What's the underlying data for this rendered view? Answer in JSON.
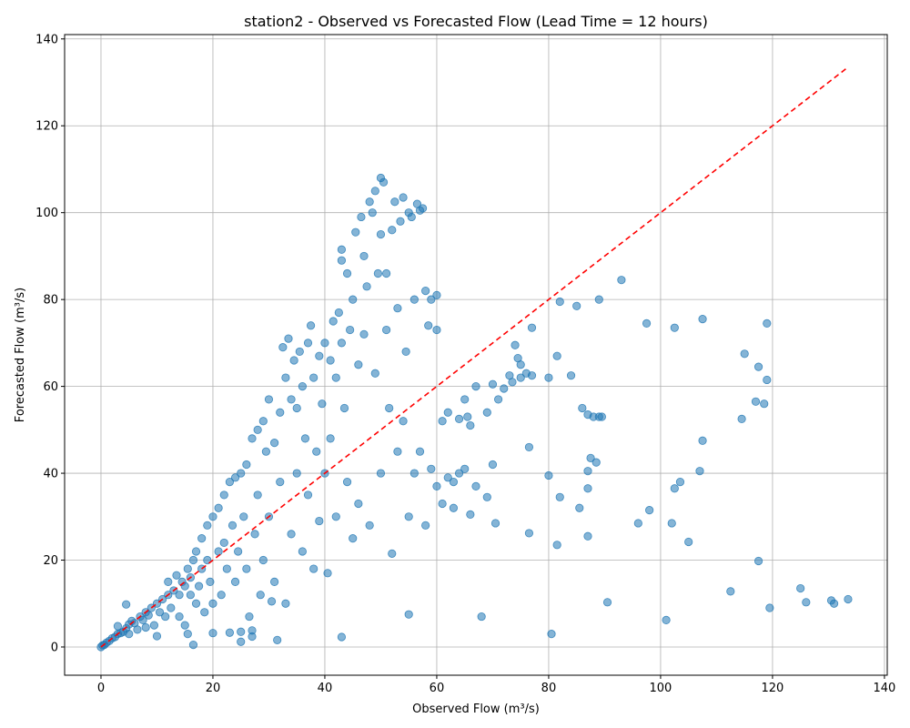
{
  "chart_data": {
    "type": "scatter",
    "title": "station2 - Observed vs Forecasted Flow (Lead Time = 12 hours)",
    "xlabel": "Observed Flow (m³/s)",
    "ylabel": "Forecasted Flow (m³/s)",
    "xlim": [
      -6.5,
      140.5
    ],
    "ylim": [
      -6.5,
      141
    ],
    "x_ticks": [
      0,
      20,
      40,
      60,
      80,
      100,
      120,
      140
    ],
    "y_ticks": [
      0,
      20,
      40,
      60,
      80,
      100,
      120,
      140
    ],
    "x_tick_labels": [
      "0",
      "20",
      "40",
      "60",
      "80",
      "100",
      "120",
      "140"
    ],
    "y_tick_labels": [
      "0",
      "20",
      "40",
      "60",
      "80",
      "100",
      "120",
      "140"
    ],
    "grid": true,
    "point_color": "#1f77b4",
    "point_alpha": 0.55,
    "reference_line": {
      "x": [
        0,
        133.5
      ],
      "y": [
        0,
        133.5
      ],
      "color": "#ff0000",
      "style": "dashed"
    },
    "series": [
      {
        "points": [
          [
            0,
            0
          ],
          [
            0.3,
            0.4
          ],
          [
            0.6,
            0.5
          ],
          [
            1,
            1
          ],
          [
            1.5,
            1.4
          ],
          [
            2,
            2
          ],
          [
            2.5,
            2.3
          ],
          [
            3,
            3
          ],
          [
            3,
            4.8
          ],
          [
            3.5,
            3.2
          ],
          [
            4,
            3.5
          ],
          [
            4.5,
            4.3
          ],
          [
            4.5,
            9.8
          ],
          [
            5,
            5.2
          ],
          [
            5,
            3
          ],
          [
            5.5,
            6
          ],
          [
            6,
            5.5
          ],
          [
            6.5,
            4
          ],
          [
            7,
            7
          ],
          [
            7.5,
            6.2
          ],
          [
            8,
            8
          ],
          [
            8,
            4.5
          ],
          [
            8.5,
            7.3
          ],
          [
            9,
            9
          ],
          [
            9.5,
            5
          ],
          [
            10,
            10
          ],
          [
            10,
            2.5
          ],
          [
            10.5,
            8
          ],
          [
            11,
            11
          ],
          [
            11.5,
            7
          ],
          [
            12,
            12
          ],
          [
            12,
            15
          ],
          [
            12.5,
            9
          ],
          [
            13,
            13
          ],
          [
            13.5,
            16.5
          ],
          [
            14,
            12
          ],
          [
            14,
            7
          ],
          [
            14.5,
            15
          ],
          [
            15,
            14
          ],
          [
            15,
            5
          ],
          [
            15.5,
            18
          ],
          [
            15.5,
            3
          ],
          [
            16,
            16
          ],
          [
            16,
            12
          ],
          [
            16.5,
            20
          ],
          [
            16.5,
            0.5
          ],
          [
            17,
            22
          ],
          [
            17,
            10
          ],
          [
            17.5,
            14
          ],
          [
            18,
            18
          ],
          [
            18,
            25
          ],
          [
            18.5,
            8
          ],
          [
            19,
            20
          ],
          [
            19,
            28
          ],
          [
            19.5,
            15
          ],
          [
            20,
            30
          ],
          [
            20,
            10
          ],
          [
            20,
            3.2
          ],
          [
            21,
            22
          ],
          [
            21,
            32
          ],
          [
            21.5,
            12
          ],
          [
            22,
            35
          ],
          [
            22,
            24
          ],
          [
            22.5,
            18
          ],
          [
            23,
            3.3
          ],
          [
            23,
            38
          ],
          [
            23.5,
            28
          ],
          [
            24,
            15
          ],
          [
            24,
            39
          ],
          [
            24.5,
            22
          ],
          [
            25,
            40
          ],
          [
            25,
            3.5
          ],
          [
            25,
            1.2
          ],
          [
            25.5,
            30
          ],
          [
            26,
            18
          ],
          [
            26,
            42
          ],
          [
            26.5,
            7
          ],
          [
            27,
            48
          ],
          [
            27,
            2.4
          ],
          [
            27.5,
            26
          ],
          [
            27,
            3.8
          ],
          [
            28,
            50
          ],
          [
            28,
            35
          ],
          [
            28.5,
            12
          ],
          [
            29,
            52
          ],
          [
            29,
            20
          ],
          [
            29.5,
            45
          ],
          [
            30,
            57
          ],
          [
            30,
            30
          ],
          [
            30.5,
            10.5
          ],
          [
            31,
            47
          ],
          [
            31,
            15
          ],
          [
            31.5,
            1.6
          ],
          [
            32,
            54
          ],
          [
            32,
            38
          ],
          [
            32.5,
            69
          ],
          [
            33,
            62
          ],
          [
            33,
            10
          ],
          [
            33.5,
            71
          ],
          [
            34,
            57
          ],
          [
            34,
            26
          ],
          [
            34.5,
            66
          ],
          [
            35,
            55
          ],
          [
            35,
            40
          ],
          [
            35.5,
            68
          ],
          [
            36,
            60
          ],
          [
            36,
            22
          ],
          [
            36.5,
            48
          ],
          [
            37,
            70
          ],
          [
            37,
            35
          ],
          [
            37.5,
            74
          ],
          [
            38,
            62
          ],
          [
            38,
            18
          ],
          [
            38.5,
            45
          ],
          [
            39,
            67
          ],
          [
            39,
            29
          ],
          [
            39.5,
            56
          ],
          [
            40,
            70
          ],
          [
            40,
            40
          ],
          [
            40.5,
            17
          ],
          [
            41,
            66
          ],
          [
            41,
            48
          ],
          [
            41.5,
            75
          ],
          [
            42,
            62
          ],
          [
            42,
            30
          ],
          [
            42.5,
            77
          ],
          [
            43,
            91.5
          ],
          [
            43,
            89
          ],
          [
            43,
            2.3
          ],
          [
            43,
            70
          ],
          [
            43.5,
            55
          ],
          [
            44,
            86
          ],
          [
            44,
            38
          ],
          [
            44.5,
            73
          ],
          [
            45,
            80
          ],
          [
            45,
            25
          ],
          [
            45.5,
            95.5
          ],
          [
            46,
            65
          ],
          [
            46,
            33
          ],
          [
            46.5,
            99
          ],
          [
            47,
            90
          ],
          [
            47,
            72
          ],
          [
            47.5,
            83
          ],
          [
            48,
            102.5
          ],
          [
            48,
            28
          ],
          [
            48.5,
            100
          ],
          [
            49,
            105
          ],
          [
            49,
            63
          ],
          [
            49.5,
            86
          ],
          [
            50,
            108
          ],
          [
            50,
            95
          ],
          [
            50,
            40
          ],
          [
            50.5,
            107
          ],
          [
            51,
            73
          ],
          [
            51,
            86
          ],
          [
            51.5,
            55
          ],
          [
            52,
            96
          ],
          [
            52,
            21.5
          ],
          [
            52.5,
            102.5
          ],
          [
            53,
            78
          ],
          [
            53,
            45
          ],
          [
            53.5,
            98
          ],
          [
            54,
            103.5
          ],
          [
            54,
            52
          ],
          [
            54.5,
            68
          ],
          [
            55,
            100
          ],
          [
            55,
            7.5
          ],
          [
            55,
            30
          ],
          [
            55.5,
            99
          ],
          [
            56,
            80
          ],
          [
            56,
            40
          ],
          [
            56.5,
            102
          ],
          [
            57,
            100.5
          ],
          [
            57,
            45
          ],
          [
            57.5,
            101
          ],
          [
            58,
            82
          ],
          [
            58,
            28
          ],
          [
            58.5,
            74
          ],
          [
            59,
            80
          ],
          [
            59,
            41
          ],
          [
            60,
            81
          ],
          [
            60,
            73
          ],
          [
            60,
            37
          ],
          [
            61,
            52
          ],
          [
            61,
            33
          ],
          [
            62,
            54
          ],
          [
            62,
            39
          ],
          [
            63,
            38
          ],
          [
            63,
            32
          ],
          [
            64,
            52.5
          ],
          [
            64,
            40
          ],
          [
            65,
            57
          ],
          [
            65,
            41
          ],
          [
            65.5,
            53
          ],
          [
            66,
            51
          ],
          [
            66,
            30.5
          ],
          [
            67,
            60
          ],
          [
            67,
            37
          ],
          [
            68,
            7
          ],
          [
            69,
            54
          ],
          [
            69,
            34.5
          ],
          [
            70,
            60.5
          ],
          [
            70,
            42
          ],
          [
            70.5,
            28.5
          ],
          [
            71,
            57
          ],
          [
            72,
            59.5
          ],
          [
            73,
            62.5
          ],
          [
            73.5,
            61
          ],
          [
            74,
            69.5
          ],
          [
            74.5,
            66.5
          ],
          [
            75,
            65
          ],
          [
            75,
            62
          ],
          [
            76,
            63
          ],
          [
            76.5,
            26.2
          ],
          [
            76.5,
            46
          ],
          [
            77,
            62.5
          ],
          [
            77,
            73.5
          ],
          [
            80,
            62
          ],
          [
            80,
            39.5
          ],
          [
            80.5,
            3
          ],
          [
            81.5,
            67
          ],
          [
            81.5,
            23.5
          ],
          [
            82,
            34.5
          ],
          [
            82,
            79.5
          ],
          [
            84,
            62.5
          ],
          [
            85,
            78.5
          ],
          [
            85.5,
            32
          ],
          [
            86,
            55
          ],
          [
            87,
            53.5
          ],
          [
            87,
            40.5
          ],
          [
            87,
            36.5
          ],
          [
            87,
            25.5
          ],
          [
            87.5,
            43.5
          ],
          [
            88,
            53
          ],
          [
            88.5,
            42.5
          ],
          [
            89,
            80
          ],
          [
            89,
            53
          ],
          [
            89.5,
            53
          ],
          [
            90.5,
            10.3
          ],
          [
            93,
            84.5
          ],
          [
            96,
            28.5
          ],
          [
            97.5,
            74.5
          ],
          [
            98,
            31.5
          ],
          [
            101,
            6.2
          ],
          [
            102,
            28.5
          ],
          [
            102.5,
            73.5
          ],
          [
            102.5,
            36.5
          ],
          [
            103.5,
            38
          ],
          [
            105,
            24.2
          ],
          [
            107,
            40.5
          ],
          [
            107.5,
            47.5
          ],
          [
            107.5,
            75.5
          ],
          [
            112.5,
            12.8
          ],
          [
            114.5,
            52.5
          ],
          [
            115,
            67.5
          ],
          [
            117,
            56.5
          ],
          [
            117.5,
            64.5
          ],
          [
            117.5,
            19.8
          ],
          [
            118.5,
            56
          ],
          [
            119,
            61.5
          ],
          [
            119,
            74.5
          ],
          [
            119.5,
            9
          ],
          [
            125,
            13.5
          ],
          [
            126,
            10.3
          ],
          [
            130.5,
            10.7
          ],
          [
            131,
            10
          ],
          [
            133.5,
            11
          ]
        ]
      }
    ]
  }
}
